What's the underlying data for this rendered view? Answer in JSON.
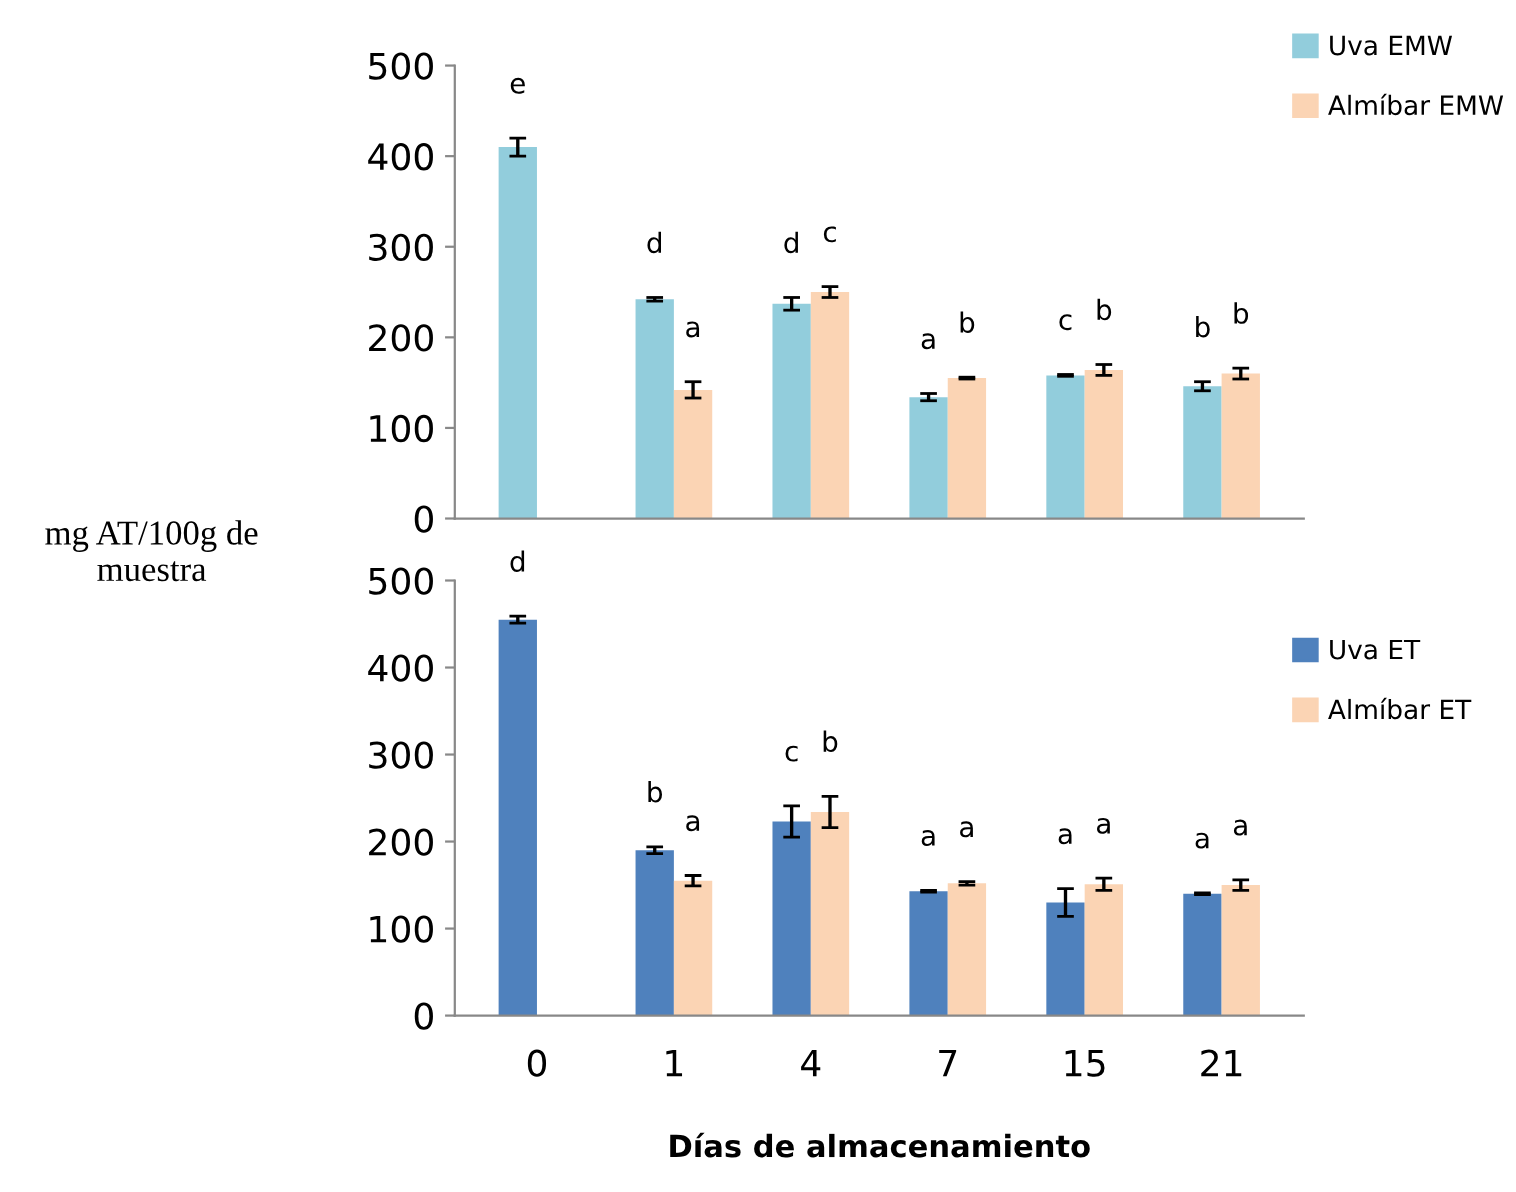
{
  "chart_data": [
    {
      "type": "bar",
      "ylabel": "mg AT/100g de muestra",
      "categories": [
        "0",
        "1",
        "4",
        "7",
        "15",
        "21"
      ],
      "tick_labels": "y",
      "ylim": [
        0,
        500
      ],
      "yticks": [
        0,
        100,
        200,
        300,
        400,
        500
      ],
      "grid": false,
      "legend": "top right",
      "series": [
        {
          "name": "Uva EMW",
          "color": "#92cddc",
          "values": [
            410,
            242,
            237,
            134,
            158,
            146
          ],
          "errors": [
            10,
            2,
            7,
            4,
            1,
            5
          ]
        },
        {
          "name": "Almíbar EMW",
          "color": "#fbd4b4",
          "values": [
            0,
            142,
            250,
            155,
            164,
            160
          ],
          "errors": [
            null,
            9,
            6,
            1,
            6,
            6
          ]
        }
      ],
      "annotations": [
        "e",
        "d",
        "a",
        "d",
        "c",
        "a",
        "b",
        "c",
        "b",
        "b",
        "b"
      ]
    },
    {
      "type": "bar",
      "xlabel": "Días de almacenamiento",
      "categories": [
        "0",
        "1",
        "4",
        "7",
        "15",
        "21"
      ],
      "ylim": [
        0,
        500
      ],
      "yticks": [
        0,
        100,
        200,
        300,
        400,
        500
      ],
      "grid": false,
      "legend": "right",
      "series": [
        {
          "name": "Uva ET",
          "color": "#4f81bd",
          "values": [
            455,
            190,
            223,
            143,
            130,
            140
          ],
          "errors": [
            4,
            4,
            18,
            1,
            16,
            1
          ]
        },
        {
          "name": "Almíbar ET",
          "color": "#fbd4b4",
          "values": [
            0,
            155,
            234,
            152,
            151,
            150
          ],
          "errors": [
            null,
            6,
            18,
            2,
            7,
            6
          ]
        }
      ],
      "annotations": [
        "d",
        "b",
        "a",
        "c",
        "b",
        "a",
        "a",
        "a",
        "a",
        "a",
        "a"
      ]
    }
  ]
}
